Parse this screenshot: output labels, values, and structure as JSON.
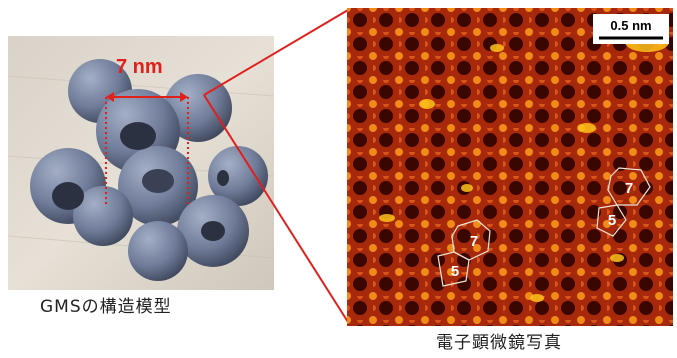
{
  "model_photo": {
    "dimension_label": "7 nm"
  },
  "micrograph": {
    "scale_bar_label": "0.5 nm",
    "ring_labels": [
      "7",
      "5",
      "7",
      "5"
    ]
  },
  "captions": {
    "left": "GMSの構造模型",
    "right": "電子顕微鏡写真"
  },
  "colors": {
    "accent_red": "#e0201c",
    "model_blue": "#6e7a96",
    "micrograph_dark": "#3a0600",
    "micrograph_bright": "#ffc21a"
  }
}
